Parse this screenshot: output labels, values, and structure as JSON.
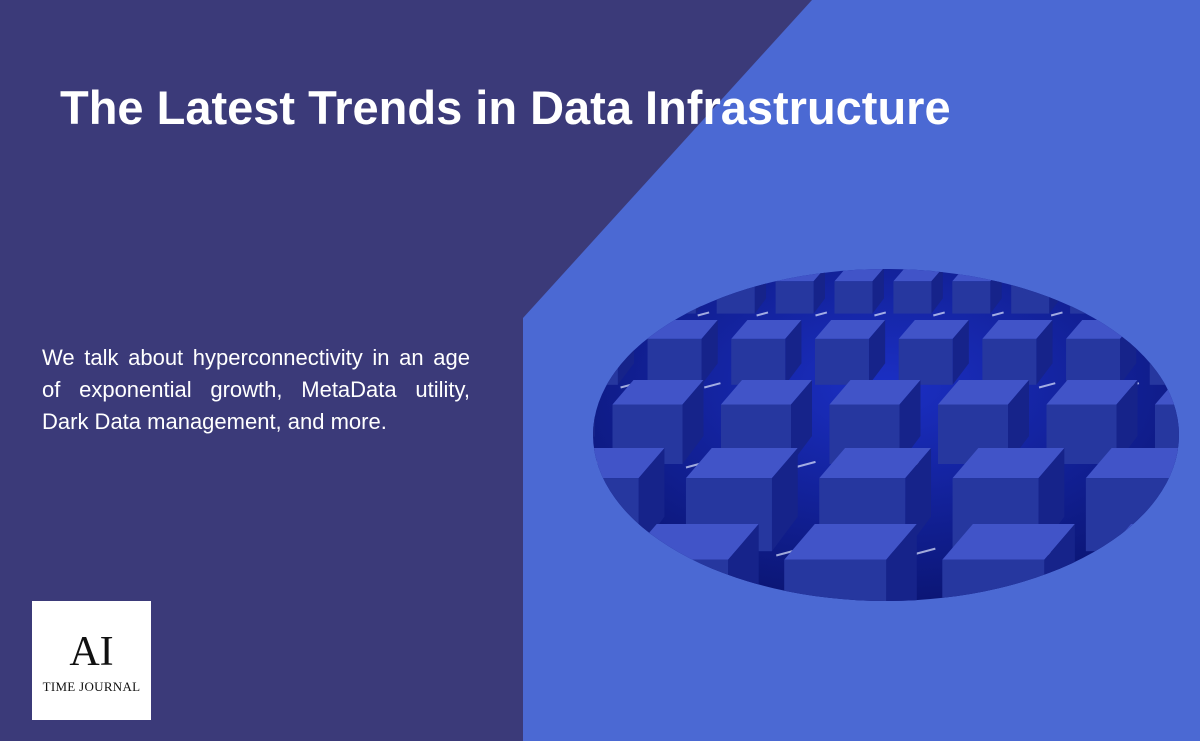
{
  "header": {
    "title": "The Latest Trends in Data Infrastructure"
  },
  "body": {
    "text": "We talk about hyperconnectivity in an age of exponential growth, MetaData utility, Dark Data management, and more."
  },
  "logo": {
    "mark": "AI",
    "name": "TIME JOURNAL"
  }
}
